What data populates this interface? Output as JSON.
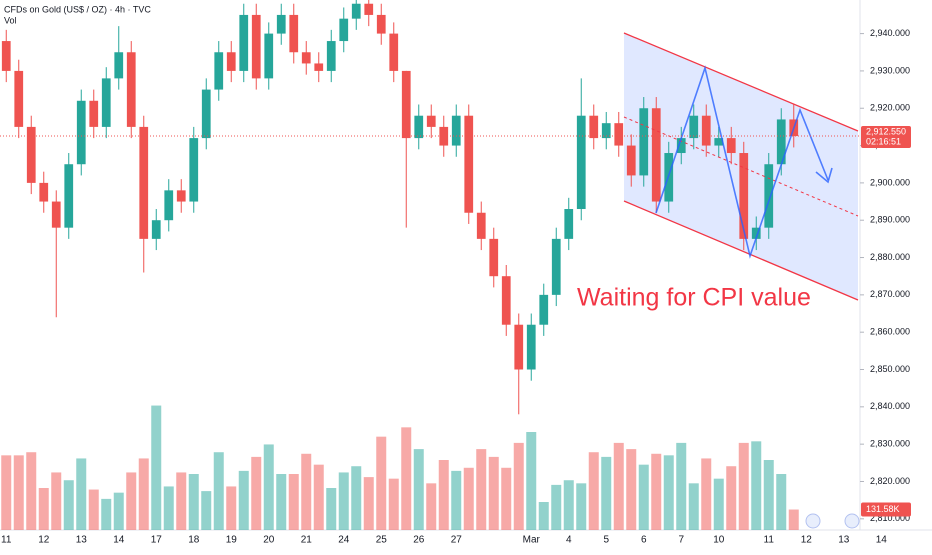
{
  "chart_data": {
    "type": "candlestick",
    "title": "CFDs on Gold (US$ / OZ) · 4h · TVC",
    "annotation": "Waiting for CPI value",
    "countdown": "02:16:51",
    "up_color": "#26a69a",
    "down_color": "#ef5350",
    "grid": false,
    "categories": [
      "11",
      null,
      null,
      "12",
      null,
      null,
      "13",
      null,
      null,
      "14",
      null,
      null,
      "17",
      null,
      null,
      "18",
      null,
      null,
      "19",
      null,
      null,
      "20",
      null,
      null,
      "21",
      null,
      null,
      "24",
      null,
      null,
      "25",
      null,
      null,
      "26",
      null,
      null,
      "27",
      null,
      null,
      null,
      null,
      null,
      "Mar",
      null,
      null,
      "4",
      null,
      null,
      "5",
      null,
      null,
      "6",
      null,
      null,
      "7",
      null,
      null,
      "10",
      null,
      null,
      null,
      "11",
      null,
      null,
      "12",
      null,
      null,
      "13",
      null,
      null,
      "14"
    ],
    "open": [
      2938,
      2930,
      2915,
      2900,
      2895,
      2888,
      2905,
      2922,
      2915,
      2928,
      2935,
      2915,
      2885,
      2890,
      2898,
      2895,
      2912,
      2925,
      2935,
      2930,
      2945,
      2928,
      2940,
      2945,
      2935,
      2932,
      2930,
      2938,
      2944,
      2948,
      2945,
      2940,
      2930,
      2912,
      2918,
      2915,
      2910,
      2918,
      2892,
      2885,
      2875,
      2862,
      2850,
      2862,
      2870,
      2885,
      2893,
      2918,
      2912,
      2916,
      2910,
      2902,
      2920,
      2895,
      2908,
      2912,
      2918,
      2910,
      2912,
      2908,
      2885,
      2888,
      2905,
      2917,
      null,
      null,
      null,
      null,
      null,
      null,
      null
    ],
    "high": [
      2941,
      2933,
      2918,
      2903,
      2898,
      2908,
      2925,
      2925,
      2931,
      2942,
      2938,
      2918,
      2893,
      2901,
      2901,
      2915,
      2928,
      2938,
      2938,
      2948,
      2948,
      2943,
      2948,
      2948,
      2938,
      2935,
      2941,
      2947,
      2951,
      2951,
      2948,
      2943,
      2930,
      2921,
      2921,
      2918,
      2921,
      2921,
      2895,
      2888,
      2878,
      2865,
      2865,
      2873,
      2888,
      2896,
      2928,
      2921,
      2919,
      2919,
      2913,
      2923,
      2923,
      2911,
      2915,
      2921,
      2921,
      2915,
      2915,
      2911,
      2891,
      2908,
      2920,
      2921,
      null,
      null,
      null,
      null,
      null,
      null,
      null
    ],
    "low": [
      2927,
      2912,
      2897,
      2892,
      2864,
      2885,
      2902,
      2912,
      2912,
      2925,
      2912,
      2876,
      2882,
      2887,
      2892,
      2892,
      2909,
      2922,
      2927,
      2927,
      2925,
      2925,
      2937,
      2932,
      2929,
      2927,
      2927,
      2935,
      2941,
      2942,
      2937,
      2927,
      2888,
      2909,
      2912,
      2907,
      2907,
      2889,
      2882,
      2872,
      2859,
      2838,
      2847,
      2859,
      2867,
      2882,
      2890,
      2909,
      2909,
      2907,
      2899,
      2899,
      2892,
      2892,
      2905,
      2909,
      2907,
      2907,
      2905,
      2882,
      2882,
      2885,
      2902,
      2909.5,
      null,
      null,
      null,
      null,
      null,
      null,
      null
    ],
    "close": [
      2930,
      2915,
      2900,
      2895,
      2888,
      2905,
      2922,
      2915,
      2928,
      2935,
      2915,
      2885,
      2890,
      2898,
      2895,
      2912,
      2925,
      2935,
      2930,
      2945,
      2928,
      2940,
      2945,
      2935,
      2932,
      2930,
      2938,
      2944,
      2948,
      2945,
      2940,
      2930,
      2912,
      2918,
      2915,
      2910,
      2918,
      2892,
      2885,
      2875,
      2862,
      2850,
      2862,
      2870,
      2885,
      2893,
      2918,
      2912,
      2916,
      2910,
      2902,
      2920,
      2895,
      2908,
      2912,
      2918,
      2910,
      2912,
      2908,
      2885,
      2888,
      2905,
      2917,
      2912.55,
      null,
      null,
      null,
      null,
      null,
      null,
      null
    ],
    "last_price": {
      "value": 2912.55,
      "label": "2,912.550"
    },
    "ylim": [
      2807,
      2949
    ],
    "yticks": [
      {
        "value": 2940,
        "label": "2,940.000"
      },
      {
        "value": 2930,
        "label": "2,930.000"
      },
      {
        "value": 2920,
        "label": "2,920.000"
      },
      {
        "value": 2910,
        "label": "2,910.000"
      },
      {
        "value": 2900,
        "label": "2,900.000"
      },
      {
        "value": 2890,
        "label": "2,890.000"
      },
      {
        "value": 2880,
        "label": "2,880.000"
      },
      {
        "value": 2870,
        "label": "2,870.000"
      },
      {
        "value": 2860,
        "label": "2,860.000"
      },
      {
        "value": 2850,
        "label": "2,850.000"
      },
      {
        "value": 2840,
        "label": "2,840.000"
      },
      {
        "value": 2830,
        "label": "2,830.000"
      },
      {
        "value": 2820,
        "label": "2,820.000"
      },
      {
        "value": 2810,
        "label": "2,810.000"
      }
    ],
    "volume": {
      "name": "Vol",
      "values": [
        480000,
        480000,
        500000,
        270000,
        370000,
        320000,
        460000,
        260000,
        200000,
        240000,
        370000,
        460000,
        800000,
        280000,
        370000,
        360000,
        250000,
        500000,
        280000,
        380000,
        470000,
        550000,
        360000,
        360000,
        490000,
        420000,
        270000,
        370000,
        410000,
        340000,
        600000,
        330000,
        660000,
        520000,
        300000,
        450000,
        380000,
        400000,
        520000,
        470000,
        400000,
        560000,
        630000,
        180000,
        290000,
        320000,
        300000,
        500000,
        470000,
        560000,
        520000,
        420000,
        490000,
        480000,
        560000,
        300000,
        460000,
        330000,
        410000,
        560000,
        570000,
        450000,
        360000,
        131580,
        null,
        null,
        null,
        null,
        null,
        null,
        null
      ],
      "last": {
        "value": 131580,
        "label": "131.58K"
      },
      "ylim": [
        0,
        900000
      ]
    }
  }
}
